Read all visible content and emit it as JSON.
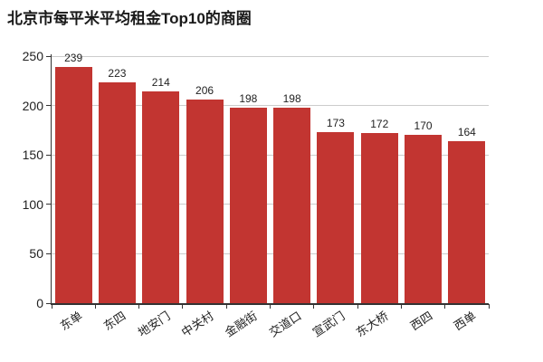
{
  "title": "北京市每平米平均租金Top10的商圈",
  "colors": {
    "bar": "#c23531",
    "grid": "#cccccc",
    "axis": "#333333",
    "text": "#222222",
    "background": "#ffffff"
  },
  "chart_data": {
    "type": "bar",
    "title": "北京市每平米平均租金Top10的商圈",
    "categories": [
      "东单",
      "东四",
      "地安门",
      "中关村",
      "金融街",
      "交道口",
      "宣武门",
      "东大桥",
      "西四",
      "西单"
    ],
    "values": [
      239,
      223,
      214,
      206,
      198,
      198,
      173,
      172,
      170,
      164
    ],
    "xlabel": "",
    "ylabel": "",
    "ylim": [
      0,
      250
    ],
    "yticks": [
      0,
      50,
      100,
      150,
      200,
      250
    ],
    "grid": true,
    "legend": "none",
    "value_labels_shown": true,
    "x_label_rotation_deg": 33
  }
}
